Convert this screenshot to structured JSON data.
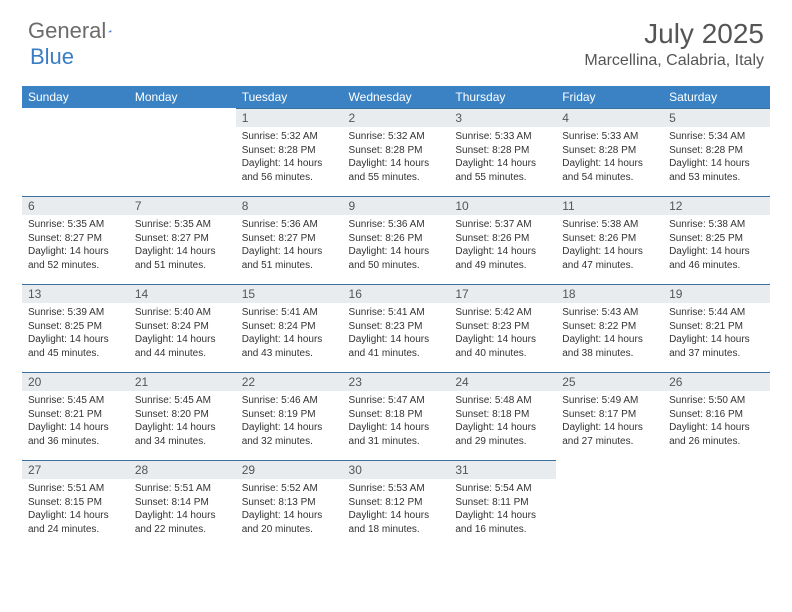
{
  "logo": {
    "general": "General",
    "blue": "Blue"
  },
  "title": "July 2025",
  "location": "Marcellina, Calabria, Italy",
  "colors": {
    "header_bg": "#3b82c4",
    "daynum_bg": "#e9ecef",
    "border": "#3b6fa0",
    "text_dark": "#333333",
    "text_gray": "#555555"
  },
  "weekdays": [
    "Sunday",
    "Monday",
    "Tuesday",
    "Wednesday",
    "Thursday",
    "Friday",
    "Saturday"
  ],
  "weeks": [
    [
      null,
      null,
      {
        "n": "1",
        "sr": "5:32 AM",
        "ss": "8:28 PM",
        "dl": "14 hours and 56 minutes."
      },
      {
        "n": "2",
        "sr": "5:32 AM",
        "ss": "8:28 PM",
        "dl": "14 hours and 55 minutes."
      },
      {
        "n": "3",
        "sr": "5:33 AM",
        "ss": "8:28 PM",
        "dl": "14 hours and 55 minutes."
      },
      {
        "n": "4",
        "sr": "5:33 AM",
        "ss": "8:28 PM",
        "dl": "14 hours and 54 minutes."
      },
      {
        "n": "5",
        "sr": "5:34 AM",
        "ss": "8:28 PM",
        "dl": "14 hours and 53 minutes."
      }
    ],
    [
      {
        "n": "6",
        "sr": "5:35 AM",
        "ss": "8:27 PM",
        "dl": "14 hours and 52 minutes."
      },
      {
        "n": "7",
        "sr": "5:35 AM",
        "ss": "8:27 PM",
        "dl": "14 hours and 51 minutes."
      },
      {
        "n": "8",
        "sr": "5:36 AM",
        "ss": "8:27 PM",
        "dl": "14 hours and 51 minutes."
      },
      {
        "n": "9",
        "sr": "5:36 AM",
        "ss": "8:26 PM",
        "dl": "14 hours and 50 minutes."
      },
      {
        "n": "10",
        "sr": "5:37 AM",
        "ss": "8:26 PM",
        "dl": "14 hours and 49 minutes."
      },
      {
        "n": "11",
        "sr": "5:38 AM",
        "ss": "8:26 PM",
        "dl": "14 hours and 47 minutes."
      },
      {
        "n": "12",
        "sr": "5:38 AM",
        "ss": "8:25 PM",
        "dl": "14 hours and 46 minutes."
      }
    ],
    [
      {
        "n": "13",
        "sr": "5:39 AM",
        "ss": "8:25 PM",
        "dl": "14 hours and 45 minutes."
      },
      {
        "n": "14",
        "sr": "5:40 AM",
        "ss": "8:24 PM",
        "dl": "14 hours and 44 minutes."
      },
      {
        "n": "15",
        "sr": "5:41 AM",
        "ss": "8:24 PM",
        "dl": "14 hours and 43 minutes."
      },
      {
        "n": "16",
        "sr": "5:41 AM",
        "ss": "8:23 PM",
        "dl": "14 hours and 41 minutes."
      },
      {
        "n": "17",
        "sr": "5:42 AM",
        "ss": "8:23 PM",
        "dl": "14 hours and 40 minutes."
      },
      {
        "n": "18",
        "sr": "5:43 AM",
        "ss": "8:22 PM",
        "dl": "14 hours and 38 minutes."
      },
      {
        "n": "19",
        "sr": "5:44 AM",
        "ss": "8:21 PM",
        "dl": "14 hours and 37 minutes."
      }
    ],
    [
      {
        "n": "20",
        "sr": "5:45 AM",
        "ss": "8:21 PM",
        "dl": "14 hours and 36 minutes."
      },
      {
        "n": "21",
        "sr": "5:45 AM",
        "ss": "8:20 PM",
        "dl": "14 hours and 34 minutes."
      },
      {
        "n": "22",
        "sr": "5:46 AM",
        "ss": "8:19 PM",
        "dl": "14 hours and 32 minutes."
      },
      {
        "n": "23",
        "sr": "5:47 AM",
        "ss": "8:18 PM",
        "dl": "14 hours and 31 minutes."
      },
      {
        "n": "24",
        "sr": "5:48 AM",
        "ss": "8:18 PM",
        "dl": "14 hours and 29 minutes."
      },
      {
        "n": "25",
        "sr": "5:49 AM",
        "ss": "8:17 PM",
        "dl": "14 hours and 27 minutes."
      },
      {
        "n": "26",
        "sr": "5:50 AM",
        "ss": "8:16 PM",
        "dl": "14 hours and 26 minutes."
      }
    ],
    [
      {
        "n": "27",
        "sr": "5:51 AM",
        "ss": "8:15 PM",
        "dl": "14 hours and 24 minutes."
      },
      {
        "n": "28",
        "sr": "5:51 AM",
        "ss": "8:14 PM",
        "dl": "14 hours and 22 minutes."
      },
      {
        "n": "29",
        "sr": "5:52 AM",
        "ss": "8:13 PM",
        "dl": "14 hours and 20 minutes."
      },
      {
        "n": "30",
        "sr": "5:53 AM",
        "ss": "8:12 PM",
        "dl": "14 hours and 18 minutes."
      },
      {
        "n": "31",
        "sr": "5:54 AM",
        "ss": "8:11 PM",
        "dl": "14 hours and 16 minutes."
      },
      null,
      null
    ]
  ],
  "labels": {
    "sunrise": "Sunrise: ",
    "sunset": "Sunset: ",
    "daylight": "Daylight: "
  }
}
